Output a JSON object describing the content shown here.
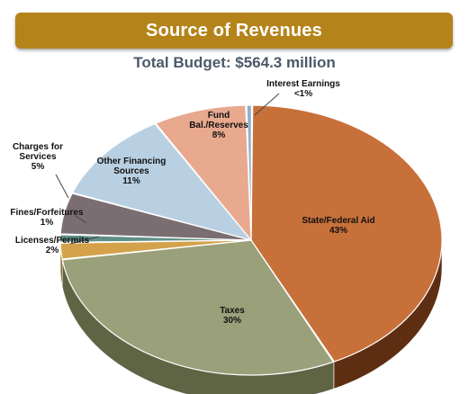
{
  "header": {
    "title": "Source of Revenues",
    "subtitle": "Total Budget: $564.3 million"
  },
  "colors": {
    "banner": "#b4841a",
    "subtitle": "#4a5a6a"
  },
  "chart_data": {
    "type": "pie",
    "style": "3d",
    "slices": [
      {
        "label_lines": [
          "State/Federal Aid",
          "43%"
        ],
        "value": 43,
        "color": "#c8703a",
        "side": "#5e2e13"
      },
      {
        "label_lines": [
          "Taxes",
          "30%"
        ],
        "value": 30,
        "color": "#9aa07a",
        "side": "#5f6444"
      },
      {
        "label_lines": [
          "Licenses/Permits",
          "2%"
        ],
        "value": 2,
        "color": "#d4a24a",
        "side": "#8a6420"
      },
      {
        "label_lines": [
          "Fines/Forfeitures",
          "1%"
        ],
        "value": 1,
        "color": "#5f8f86",
        "side": "#365850"
      },
      {
        "label_lines": [
          "Charges for",
          "Services",
          "5%"
        ],
        "value": 5,
        "color": "#7b6e73",
        "side": "#4c4246"
      },
      {
        "label_lines": [
          "Other Financing",
          "Sources",
          "11%"
        ],
        "value": 11,
        "color": "#b9d0e2",
        "side": "#7c93a4"
      },
      {
        "label_lines": [
          "Fund",
          "Bal./Reserves",
          "8%"
        ],
        "value": 8,
        "color": "#e8a98f",
        "side": "#a86a52"
      },
      {
        "label_lines": [
          "Interest Earnings",
          "<1%"
        ],
        "value": 0.5,
        "color": "#8fb0cc",
        "side": "#5a7690"
      }
    ]
  }
}
